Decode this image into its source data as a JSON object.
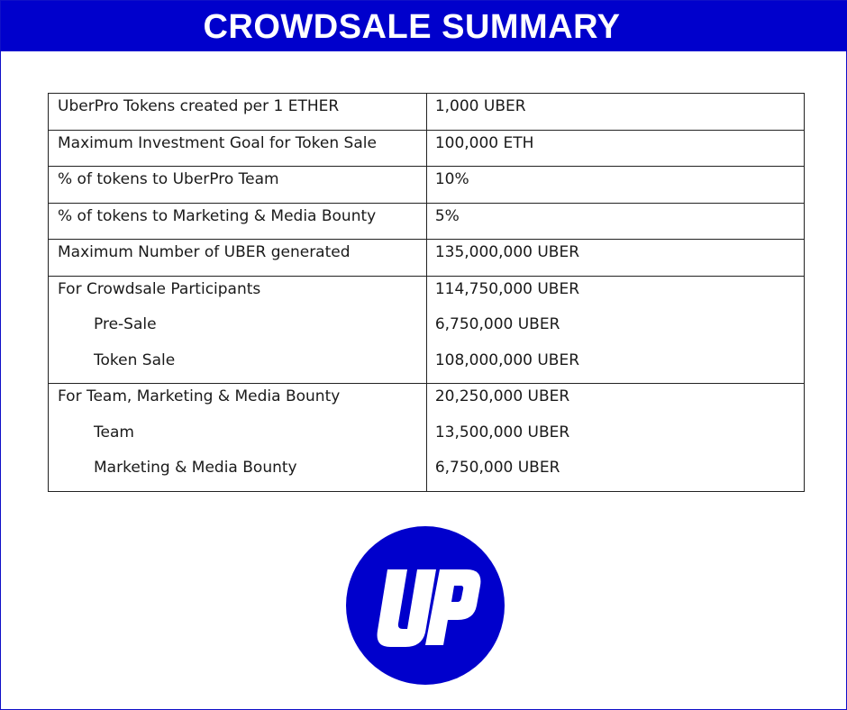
{
  "header": {
    "title": "CROWDSALE SUMMARY"
  },
  "colors": {
    "brand_blue": "#0000cc",
    "border": "#222222"
  },
  "table": {
    "rows": [
      {
        "label": "UberPro Tokens created per 1 ETHER",
        "value": "1,000 UBER"
      },
      {
        "label": "Maximum Investment Goal for Token Sale",
        "value": "100,000 ETH"
      },
      {
        "label": "% of tokens to UberPro Team",
        "value": "10%"
      },
      {
        "label": "% of tokens to Marketing & Media Bounty",
        "value": "5%"
      },
      {
        "label": "Maximum Number of UBER generated",
        "value": "135,000,000 UBER"
      },
      {
        "label": "For Crowdsale Participants",
        "value": "114,750,000 UBER",
        "sub": [
          {
            "label": "Pre-Sale",
            "value": "6,750,000  UBER"
          },
          {
            "label": "Token Sale",
            "value": "108,000,000 UBER"
          }
        ]
      },
      {
        "label": "For Team, Marketing & Media Bounty",
        "value": "20,250,000 UBER",
        "sub": [
          {
            "label": "Team",
            "value": "13,500,000 UBER"
          },
          {
            "label": "Marketing & Media Bounty",
            "value": "6,750,000 UBER"
          }
        ]
      }
    ]
  },
  "logo": {
    "icon": "uberpro-logo-icon",
    "lettering": "UP"
  }
}
